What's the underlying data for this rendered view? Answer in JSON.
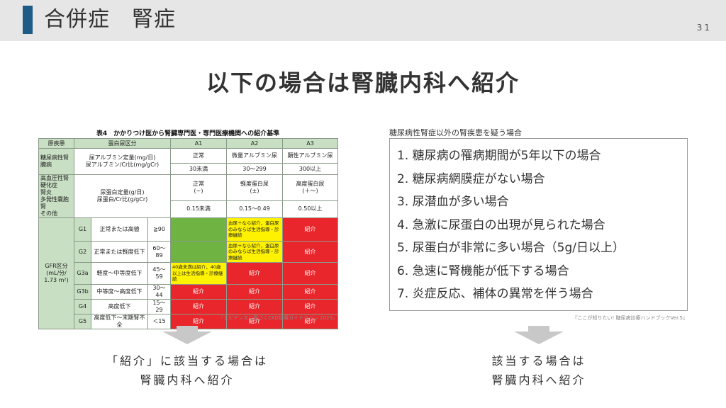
{
  "header": {
    "title": "合併症　腎症",
    "page_number": "31"
  },
  "main_title": "以下の場合は腎臓内科へ紹介",
  "left_panel": {
    "caption": "表4　かかりつけ医から腎臓専門医・専門医療機関への紹介基準",
    "table": {
      "h_disease": "原疾患",
      "h_category": "蛋白尿区分",
      "h_a1": "A1",
      "h_a2": "A2",
      "h_a3": "A3",
      "diabetes": "糖尿病性腎臓病",
      "diabetes_test": "尿アルブミン定量(mg/日)\n尿アルブミン/Cr比(mg/gCr)",
      "d_a1": "正常",
      "d_a2": "微量アルブミン尿",
      "d_a3": "顕性アルブミン尿",
      "d_a1_r": "30未満",
      "d_a2_r": "30〜299",
      "d_a3_r": "300以上",
      "other": "高血圧性腎硬化症\n腎炎\n多発性嚢胞腎\nその他",
      "other_test": "尿蛋白定量(g/日)\n尿蛋白/Cr比(g/gCr)",
      "o_a1": "正常\n(−)",
      "o_a2": "軽度蛋白尿\n(±)",
      "o_a3": "高度蛋白尿\n(＋〜)",
      "o_a1_r": "0.15未満",
      "o_a2_r": "0.15〜0.49",
      "o_a3_r": "0.50以上",
      "gfr_label": "GFR区分\n(mL/分/\n1.73 m²)",
      "rows": [
        {
          "g": "G1",
          "desc": "正常または高値",
          "range": "≧90",
          "a2": "血尿＋なら紹介，蛋白尿のみならば生活指導・診療継続",
          "a3": "紹介"
        },
        {
          "g": "G2",
          "desc": "正常または軽度低下",
          "range": "60〜89",
          "a2": "血尿＋なら紹介，蛋白尿のみならば生活指導・診療継続",
          "a3": "紹介"
        },
        {
          "g": "G3a",
          "desc": "軽度〜中等度低下",
          "range": "45〜59",
          "a1": "40歳未満は紹介，40歳以上は生活指導・診療継続",
          "a2": "紹介",
          "a3": "紹介"
        },
        {
          "g": "G3b",
          "desc": "中等度〜高度低下",
          "range": "30〜44",
          "a1": "紹介",
          "a2": "紹介",
          "a3": "紹介"
        },
        {
          "g": "G4",
          "desc": "高度低下",
          "range": "15〜29",
          "a1": "紹介",
          "a2": "紹介",
          "a3": "紹介"
        },
        {
          "g": "G5",
          "desc": "高度低下〜末期腎不全",
          "range": "＜15",
          "a1": "紹介",
          "a2": "紹介",
          "a3": "紹介"
        }
      ],
      "colors": {
        "header": "#c8dfc3",
        "green": "#6fb442",
        "yellow": "#fff200",
        "red": "#e8262b"
      }
    },
    "citation": "『エビデンスに基づくCKD診療ガイドライン 2023』",
    "conclusion_line1": "「紹介」に該当する場合は",
    "conclusion_line2": "腎臓内科へ紹介"
  },
  "right_panel": {
    "caption": "糖尿病性腎症以外の腎疾患を疑う場合",
    "items": [
      "1. 糖尿病の罹病期間が5年以下の場合",
      "2. 糖尿病網膜症がない場合",
      "3. 尿潜血が多い場合",
      "4. 急激に尿蛋白の出現が見られた場合",
      "5. 尿蛋白が非常に多い場合（5g/日以上）",
      "6. 急速に腎機能が低下する場合",
      "7. 炎症反応、補体の異常を伴う場合"
    ],
    "citation": "『ここが知りたい! 糖尿病診療ハンドブックVer.5』",
    "conclusion_line1": "該当する場合は",
    "conclusion_line2": "腎臓内科へ紹介"
  },
  "accent_color": "#1f5b87"
}
